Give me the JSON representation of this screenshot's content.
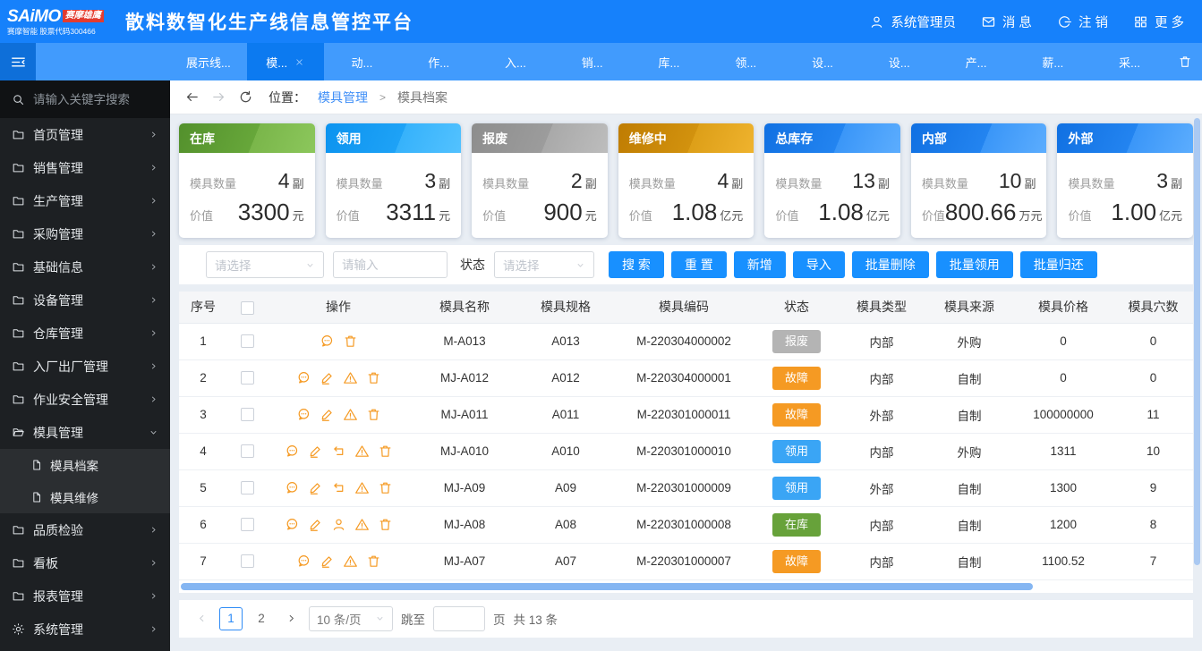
{
  "topbar": {
    "brand": {
      "name": "SAiMO",
      "badge": "赛摩雄鹰",
      "subtitle": "赛摩智能 股票代码300466"
    },
    "title": "散料数智化生产线信息管控平台",
    "menu": [
      {
        "id": "admin",
        "icon": "user-icon",
        "label": "系统管理员"
      },
      {
        "id": "messages",
        "icon": "mail-icon",
        "label": "消 息"
      },
      {
        "id": "logout",
        "icon": "logout-icon",
        "label": "注 销"
      },
      {
        "id": "more",
        "icon": "grid-icon",
        "label": "更 多"
      }
    ]
  },
  "tabbar": {
    "tabs": [
      {
        "label": "展示线...",
        "active": false,
        "closable": false
      },
      {
        "label": "模...",
        "active": true,
        "closable": true
      },
      {
        "label": "动...",
        "active": false,
        "closable": false
      },
      {
        "label": "作...",
        "active": false,
        "closable": false
      },
      {
        "label": "入...",
        "active": false,
        "closable": false
      },
      {
        "label": "销...",
        "active": false,
        "closable": false
      },
      {
        "label": "库...",
        "active": false,
        "closable": false
      },
      {
        "label": "领...",
        "active": false,
        "closable": false
      },
      {
        "label": "设...",
        "active": false,
        "closable": false
      },
      {
        "label": "设...",
        "active": false,
        "closable": false
      },
      {
        "label": "产...",
        "active": false,
        "closable": false
      },
      {
        "label": "薪...",
        "active": false,
        "closable": false
      },
      {
        "label": "采...",
        "active": false,
        "closable": false
      }
    ]
  },
  "sidebar": {
    "search_placeholder": "请输入关键字搜索",
    "items": [
      {
        "label": "首页管理",
        "icon": "folder-icon",
        "chevron": "right"
      },
      {
        "label": "销售管理",
        "icon": "folder-icon",
        "chevron": "right"
      },
      {
        "label": "生产管理",
        "icon": "folder-icon",
        "chevron": "right"
      },
      {
        "label": "采购管理",
        "icon": "folder-icon",
        "chevron": "right"
      },
      {
        "label": "基础信息",
        "icon": "folder-icon",
        "chevron": "right"
      },
      {
        "label": "设备管理",
        "icon": "folder-icon",
        "chevron": "right"
      },
      {
        "label": "仓库管理",
        "icon": "folder-icon",
        "chevron": "right"
      },
      {
        "label": "入厂出厂管理",
        "icon": "folder-icon",
        "chevron": "right"
      },
      {
        "label": "作业安全管理",
        "icon": "folder-icon",
        "chevron": "right"
      },
      {
        "label": "模具管理",
        "icon": "folder-open-icon",
        "chevron": "down",
        "expanded": true,
        "children": [
          {
            "label": "模具档案",
            "active": true
          },
          {
            "label": "模具维修",
            "active": false
          }
        ]
      },
      {
        "label": "品质检验",
        "icon": "folder-icon",
        "chevron": "right"
      },
      {
        "label": "看板",
        "icon": "folder-icon",
        "chevron": "right"
      },
      {
        "label": "报表管理",
        "icon": "folder-icon",
        "chevron": "right"
      },
      {
        "label": "系统管理",
        "icon": "gear-icon",
        "chevron": "right"
      }
    ]
  },
  "breadcrumb": {
    "prefix": "位置：",
    "parent": "模具管理",
    "separator": ">",
    "current": "模具档案"
  },
  "summary_cards": [
    {
      "title": "在库",
      "theme": "green",
      "qty_label": "模具数量",
      "qty": "4",
      "qty_unit": "副",
      "value_label": "价值",
      "value": "3300",
      "value_unit": "元"
    },
    {
      "title": "领用",
      "theme": "lightblue",
      "qty_label": "模具数量",
      "qty": "3",
      "qty_unit": "副",
      "value_label": "价值",
      "value": "3311",
      "value_unit": "元"
    },
    {
      "title": "报废",
      "theme": "gray",
      "qty_label": "模具数量",
      "qty": "2",
      "qty_unit": "副",
      "value_label": "价值",
      "value": "900",
      "value_unit": "元"
    },
    {
      "title": "维修中",
      "theme": "orange",
      "qty_label": "模具数量",
      "qty": "4",
      "qty_unit": "副",
      "value_label": "价值",
      "value": "1.08",
      "value_unit": "亿元"
    },
    {
      "title": "总库存",
      "theme": "blue",
      "qty_label": "模具数量",
      "qty": "13",
      "qty_unit": "副",
      "value_label": "价值",
      "value": "1.08",
      "value_unit": "亿元"
    },
    {
      "title": "内部",
      "theme": "blue",
      "qty_label": "模具数量",
      "qty": "10",
      "qty_unit": "副",
      "value_label": "价值",
      "value": "800.66",
      "value_unit": "万元"
    },
    {
      "title": "外部",
      "theme": "blue",
      "qty_label": "模具数量",
      "qty": "3",
      "qty_unit": "副",
      "value_label": "价值",
      "value": "1.00",
      "value_unit": "亿元"
    }
  ],
  "filter": {
    "select1_placeholder": "请选择",
    "input_placeholder": "请输入",
    "status_label": "状态",
    "select2_placeholder": "请选择",
    "buttons": [
      {
        "id": "search",
        "label": "搜 索"
      },
      {
        "id": "reset",
        "label": "重 置"
      },
      {
        "id": "add",
        "label": "新增"
      },
      {
        "id": "import",
        "label": "导入"
      },
      {
        "id": "batch-delete",
        "label": "批量删除"
      },
      {
        "id": "batch-borrow",
        "label": "批量领用"
      },
      {
        "id": "batch-return",
        "label": "批量归还"
      }
    ]
  },
  "table": {
    "columns": [
      "序号",
      "",
      "操作",
      "模具名称",
      "模具规格",
      "模具编码",
      "状态",
      "模具类型",
      "模具来源",
      "模具价格",
      "模具穴数"
    ],
    "status_colors": {
      "报废": "#b4b4b4",
      "故障": "#f59a23",
      "领用": "#3aa5f5",
      "在库": "#67a23a"
    },
    "rows": [
      {
        "no": "1",
        "actions": [
          "comment",
          "delete"
        ],
        "name": "M-A013",
        "spec": "A013",
        "code": "M-220304000002",
        "status": "报废",
        "type": "内部",
        "source": "外购",
        "price": "0",
        "cavity": "0"
      },
      {
        "no": "2",
        "actions": [
          "comment",
          "edit",
          "warning",
          "delete"
        ],
        "name": "MJ-A012",
        "spec": "A012",
        "code": "M-220304000001",
        "status": "故障",
        "type": "内部",
        "source": "自制",
        "price": "0",
        "cavity": "0"
      },
      {
        "no": "3",
        "actions": [
          "comment",
          "edit",
          "warning",
          "delete"
        ],
        "name": "MJ-A011",
        "spec": "A011",
        "code": "M-220301000011",
        "status": "故障",
        "type": "外部",
        "source": "自制",
        "price": "100000000",
        "cavity": "11"
      },
      {
        "no": "4",
        "actions": [
          "comment",
          "edit",
          "return",
          "warning",
          "delete"
        ],
        "name": "MJ-A010",
        "spec": "A010",
        "code": "M-220301000010",
        "status": "领用",
        "type": "内部",
        "source": "外购",
        "price": "1311",
        "cavity": "10"
      },
      {
        "no": "5",
        "actions": [
          "comment",
          "edit",
          "return",
          "warning",
          "delete"
        ],
        "name": "MJ-A09",
        "spec": "A09",
        "code": "M-220301000009",
        "status": "领用",
        "type": "外部",
        "source": "自制",
        "price": "1300",
        "cavity": "9"
      },
      {
        "no": "6",
        "actions": [
          "comment",
          "edit",
          "person",
          "warning",
          "delete"
        ],
        "name": "MJ-A08",
        "spec": "A08",
        "code": "M-220301000008",
        "status": "在库",
        "type": "内部",
        "source": "自制",
        "price": "1200",
        "cavity": "8"
      },
      {
        "no": "7",
        "actions": [
          "comment",
          "edit",
          "warning",
          "delete"
        ],
        "name": "MJ-A07",
        "spec": "A07",
        "code": "M-220301000007",
        "status": "故障",
        "type": "内部",
        "source": "自制",
        "price": "1100.52",
        "cavity": "7"
      }
    ]
  },
  "pagination": {
    "pages": [
      {
        "label": "1",
        "current": true
      },
      {
        "label": "2",
        "current": false
      }
    ],
    "page_size": "10 条/页",
    "jump_label": "跳至",
    "page_word": "页",
    "total": "共 13 条"
  }
}
